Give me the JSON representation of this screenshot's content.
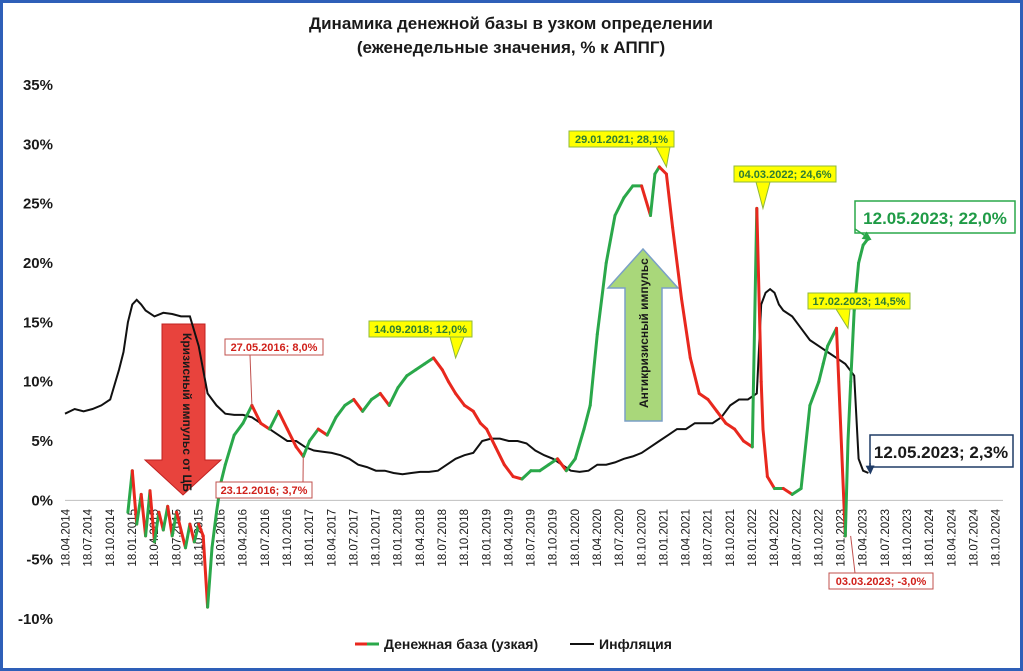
{
  "chart_data": {
    "type": "line",
    "title": "Динамика денежной базы в узком определении",
    "subtitle": "(еженедельные значения, % к АППГ)",
    "ylim": [
      -10,
      35
    ],
    "y_ticks": [
      "35%",
      "30%",
      "25%",
      "20%",
      "15%",
      "10%",
      "5%",
      "0%",
      "-5%",
      "-10%"
    ],
    "y_tick_values": [
      35,
      30,
      25,
      20,
      15,
      10,
      5,
      0,
      -5,
      -10
    ],
    "x_range": [
      2014.29,
      2024.88
    ],
    "x_ticks": [
      "18.04.2014",
      "18.07.2014",
      "18.10.2014",
      "18.01.2015",
      "18.04.2015",
      "18.07.2015",
      "18.10.2015",
      "18.01.2016",
      "18.04.2016",
      "18.07.2016",
      "18.10.2016",
      "18.01.2017",
      "18.04.2017",
      "18.07.2017",
      "18.10.2017",
      "18.01.2018",
      "18.04.2018",
      "18.07.2018",
      "18.10.2018",
      "18.01.2019",
      "18.04.2019",
      "18.07.2019",
      "18.10.2019",
      "18.01.2020",
      "18.04.2020",
      "18.07.2020",
      "18.10.2020",
      "18.01.2021",
      "18.04.2021",
      "18.07.2021",
      "18.10.2021",
      "18.01.2022",
      "18.04.2022",
      "18.07.2022",
      "18.10.2022",
      "18.01.2023",
      "18.04.2023",
      "18.07.2023",
      "18.10.2023",
      "18.01.2024",
      "18.04.2024",
      "18.07.2024",
      "18.10.2024"
    ],
    "legend": [
      {
        "name": "Денежная база (узкая)",
        "color": "#e8281e",
        "color2": "#2aa84a"
      },
      {
        "name": "Инфляция",
        "color": "#111111"
      }
    ],
    "series": [
      {
        "name": "Денежная база (узкая)",
        "x": [
          2015.0,
          2015.05,
          2015.1,
          2015.15,
          2015.2,
          2015.25,
          2015.3,
          2015.35,
          2015.4,
          2015.45,
          2015.5,
          2015.55,
          2015.6,
          2015.65,
          2015.7,
          2015.75,
          2015.8,
          2015.85,
          2015.9,
          2015.95,
          2016.0,
          2016.05,
          2016.1,
          2016.2,
          2016.3,
          2016.4,
          2016.5,
          2016.6,
          2016.7,
          2016.8,
          2016.9,
          2016.98,
          2017.05,
          2017.15,
          2017.25,
          2017.35,
          2017.45,
          2017.55,
          2017.65,
          2017.75,
          2017.85,
          2017.95,
          2018.05,
          2018.15,
          2018.25,
          2018.35,
          2018.45,
          2018.55,
          2018.62,
          2018.7,
          2018.8,
          2018.9,
          2018.98,
          2019.05,
          2019.15,
          2019.25,
          2019.35,
          2019.45,
          2019.55,
          2019.65,
          2019.75,
          2019.85,
          2019.95,
          2020.05,
          2020.15,
          2020.22,
          2020.3,
          2020.4,
          2020.5,
          2020.6,
          2020.7,
          2020.8,
          2020.9,
          2020.95,
          2021.0,
          2021.08,
          2021.15,
          2021.25,
          2021.35,
          2021.45,
          2021.55,
          2021.65,
          2021.75,
          2021.85,
          2021.95,
          2022.05,
          2022.1,
          2022.15,
          2022.17,
          2022.22,
          2022.3,
          2022.4,
          2022.5,
          2022.6,
          2022.7,
          2022.8,
          2022.85,
          2022.9,
          2023.0,
          2023.1,
          2023.13,
          2023.16,
          2023.2,
          2023.25,
          2023.3,
          2023.35,
          2023.36
        ],
        "values": [
          -1.0,
          2.5,
          -2.0,
          0.5,
          -3.0,
          0.8,
          -3.5,
          -1.0,
          -2.5,
          -0.5,
          -3.0,
          -1.0,
          -2.5,
          -4.0,
          -2.0,
          -3.5,
          -2.0,
          -3.0,
          -9.0,
          -4.0,
          -1.0,
          1.5,
          3.0,
          5.5,
          6.5,
          8.0,
          6.5,
          6.0,
          7.5,
          6.0,
          4.5,
          3.7,
          5.0,
          6.0,
          5.5,
          7.0,
          8.0,
          8.5,
          7.5,
          8.5,
          9.0,
          8.0,
          9.5,
          10.5,
          11.0,
          11.5,
          12.0,
          11.0,
          10.0,
          9.0,
          8.0,
          7.5,
          6.5,
          6.0,
          4.5,
          3.0,
          2.0,
          1.8,
          2.5,
          2.5,
          3.0,
          3.5,
          2.5,
          3.5,
          6.0,
          8.0,
          14.0,
          20.0,
          24.0,
          25.5,
          26.5,
          26.5,
          24.0,
          27.5,
          28.1,
          27.5,
          23.0,
          17.0,
          12.0,
          9.0,
          8.5,
          7.5,
          6.5,
          6.0,
          5.0,
          4.5,
          24.6,
          10.0,
          6.0,
          2.0,
          1.0,
          1.0,
          0.5,
          1.0,
          8.0,
          10.0,
          11.5,
          13.0,
          14.5,
          -3.0,
          5.0,
          10.0,
          16.0,
          20.0,
          21.5,
          22.0,
          22.0
        ],
        "color_segments": "red when decreasing, green when increasing"
      },
      {
        "name": "Инфляция",
        "x": [
          2014.29,
          2014.4,
          2014.5,
          2014.6,
          2014.7,
          2014.8,
          2014.9,
          2014.95,
          2015.0,
          2015.05,
          2015.1,
          2015.15,
          2015.2,
          2015.3,
          2015.4,
          2015.5,
          2015.6,
          2015.7,
          2015.8,
          2015.9,
          2016.0,
          2016.1,
          2016.2,
          2016.3,
          2016.4,
          2016.5,
          2016.6,
          2016.7,
          2016.8,
          2016.9,
          2017.0,
          2017.1,
          2017.2,
          2017.3,
          2017.4,
          2017.5,
          2017.6,
          2017.7,
          2017.8,
          2017.9,
          2018.0,
          2018.1,
          2018.2,
          2018.3,
          2018.4,
          2018.5,
          2018.6,
          2018.7,
          2018.8,
          2018.9,
          2019.0,
          2019.1,
          2019.2,
          2019.3,
          2019.4,
          2019.5,
          2019.6,
          2019.7,
          2019.8,
          2019.9,
          2020.0,
          2020.1,
          2020.2,
          2020.3,
          2020.4,
          2020.5,
          2020.6,
          2020.7,
          2020.8,
          2020.9,
          2021.0,
          2021.1,
          2021.2,
          2021.3,
          2021.4,
          2021.5,
          2021.6,
          2021.7,
          2021.8,
          2021.9,
          2022.0,
          2022.1,
          2022.15,
          2022.2,
          2022.25,
          2022.3,
          2022.35,
          2022.4,
          2022.5,
          2022.6,
          2022.7,
          2022.8,
          2022.9,
          2023.0,
          2023.1,
          2023.15,
          2023.2,
          2023.25,
          2023.3,
          2023.36
        ],
        "values": [
          7.3,
          7.7,
          7.5,
          7.7,
          8.0,
          8.5,
          11.0,
          12.5,
          15.0,
          16.5,
          16.9,
          16.5,
          16.0,
          15.5,
          15.8,
          15.7,
          15.5,
          15.5,
          13.0,
          9.0,
          8.0,
          7.3,
          7.2,
          7.2,
          7.0,
          6.5,
          6.0,
          5.5,
          5.0,
          5.0,
          4.5,
          4.2,
          4.1,
          4.0,
          3.8,
          3.5,
          3.0,
          2.8,
          2.5,
          2.5,
          2.3,
          2.2,
          2.3,
          2.4,
          2.4,
          2.5,
          3.0,
          3.5,
          3.8,
          4.0,
          5.0,
          5.2,
          5.2,
          5.0,
          5.0,
          4.8,
          4.2,
          3.8,
          3.5,
          3.0,
          2.5,
          2.4,
          2.5,
          3.0,
          3.0,
          3.2,
          3.5,
          3.7,
          4.0,
          4.5,
          5.0,
          5.5,
          6.0,
          6.0,
          6.5,
          6.5,
          6.5,
          7.0,
          8.0,
          8.5,
          8.5,
          9.0,
          16.5,
          17.5,
          17.8,
          17.5,
          16.5,
          16.0,
          15.5,
          14.5,
          13.5,
          13.0,
          12.5,
          12.0,
          11.5,
          11.0,
          10.5,
          3.5,
          2.5,
          2.3
        ],
        "color": "#111111"
      }
    ],
    "annotations": [
      {
        "text": "29.01.2021; 28,1%",
        "x": 2021.08,
        "y": 28.1,
        "style": "yellow"
      },
      {
        "text": "04.03.2022; 24,6%",
        "x": 2022.17,
        "y": 24.6,
        "style": "yellow"
      },
      {
        "text": "14.09.2018; 12,0%",
        "x": 2018.7,
        "y": 12.0,
        "style": "yellow"
      },
      {
        "text": "17.02.2023; 14,5%",
        "x": 2023.13,
        "y": 14.5,
        "style": "yellow"
      },
      {
        "text": "27.05.2016; 8,0%",
        "x": 2016.4,
        "y": 8.0,
        "style": "red-box"
      },
      {
        "text": "23.12.2016; 3,7%",
        "x": 2016.98,
        "y": 3.7,
        "style": "red-box"
      },
      {
        "text": "03.03.2023; -3,0%",
        "x": 2023.16,
        "y": -3.0,
        "style": "red-box"
      },
      {
        "text": "12.05.2023; 22,0%",
        "x": 2023.36,
        "y": 22.0,
        "style": "green-large"
      },
      {
        "text": "12.05.2023; 2,3%",
        "x": 2023.36,
        "y": 2.3,
        "style": "dark-large"
      }
    ],
    "arrows": [
      {
        "text": "Кризисный импульс от ЦБ",
        "direction": "down",
        "color": "#e8433d"
      },
      {
        "text": "Антикризисный импульс",
        "direction": "up",
        "color": "#a9d77a"
      }
    ],
    "grid": false
  }
}
